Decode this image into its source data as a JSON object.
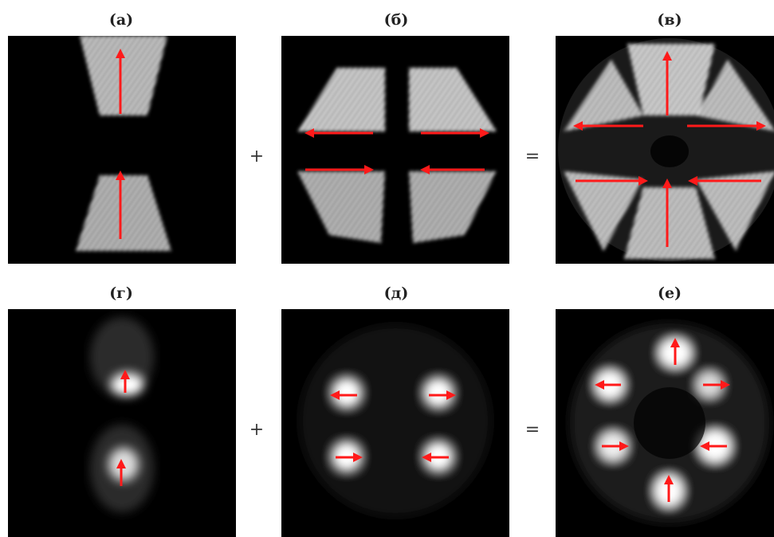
{
  "rows": [
    {
      "panels": [
        {
          "label": "(а)",
          "arrows": [
            [
              "up"
            ],
            [
              "up"
            ]
          ]
        },
        {
          "label": "(б)",
          "arrows": [
            [
              "left"
            ],
            [
              "right"
            ],
            [
              "right"
            ],
            [
              "left"
            ]
          ]
        },
        {
          "label": "(в)",
          "arrows": [
            [
              "up"
            ],
            [
              "left"
            ],
            [
              "right"
            ],
            [
              "right"
            ],
            [
              "left"
            ],
            [
              "up"
            ]
          ]
        }
      ],
      "operators": [
        "+",
        "="
      ]
    },
    {
      "panels": [
        {
          "label": "(г)",
          "arrows": [
            [
              "up"
            ],
            [
              "up"
            ]
          ]
        },
        {
          "label": "(д)",
          "arrows": [
            [
              "left"
            ],
            [
              "right"
            ],
            [
              "right"
            ],
            [
              "left"
            ]
          ]
        },
        {
          "label": "(е)",
          "arrows": [
            [
              "up"
            ],
            [
              "left"
            ],
            [
              "right"
            ],
            [
              "right"
            ],
            [
              "left"
            ],
            [
              "up"
            ]
          ]
        }
      ],
      "operators": [
        "+",
        "="
      ]
    }
  ],
  "colors": {
    "arrow": "#ff1a1a",
    "panel_bg": "#000000",
    "glow": "#ffffff"
  }
}
